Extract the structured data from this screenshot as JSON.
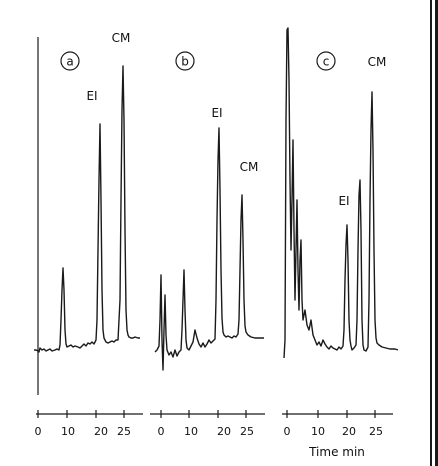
{
  "chart_data": [
    {
      "type": "line",
      "panel_label": "a",
      "x_ticks": [
        "0",
        "10",
        "20",
        "25"
      ],
      "peaks": [
        {
          "label": "",
          "time": 8,
          "height": 0.41
        },
        {
          "label": "EI",
          "time": 18,
          "height": 1.0
        },
        {
          "label": "CM",
          "time": 24,
          "height": 1.2
        }
      ]
    },
    {
      "type": "line",
      "panel_label": "b",
      "x_ticks": [
        "0",
        "10",
        "20",
        "25"
      ],
      "peaks": [
        {
          "label": "",
          "time": 1,
          "height": 0.35
        },
        {
          "label": "",
          "time": 7,
          "height": 0.3
        },
        {
          "label": "EI",
          "time": 18,
          "height": 0.9
        },
        {
          "label": "CM",
          "time": 24,
          "height": 0.65
        }
      ]
    },
    {
      "type": "line",
      "panel_label": "c",
      "x_ticks": [
        "0",
        "10",
        "20",
        "25"
      ],
      "xlabel": "Time min",
      "peaks": [
        {
          "label": "",
          "time": 1,
          "height": 1.35
        },
        {
          "label": "",
          "time": 4,
          "height": 0.65
        },
        {
          "label": "EI",
          "time": 18,
          "height": 0.5
        },
        {
          "label": "",
          "time": 21,
          "height": 0.68
        },
        {
          "label": "CM",
          "time": 24,
          "height": 1.0
        }
      ]
    }
  ]
}
